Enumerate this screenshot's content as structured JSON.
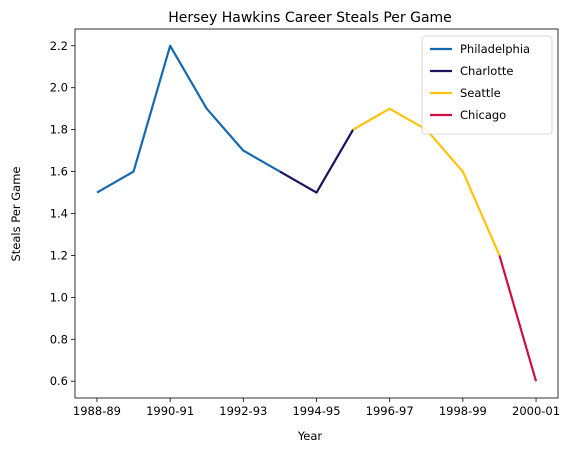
{
  "chart_data": {
    "type": "line",
    "title": "Hersey Hawkins Career Steals Per Game",
    "xlabel": "Year",
    "ylabel": "Steals Per Game",
    "xlim": [
      1988,
      2000
    ],
    "ylim": [
      0.52,
      2.28
    ],
    "x_ticks": [
      {
        "value": 1988,
        "label": "1988-89"
      },
      {
        "value": 1990,
        "label": "1990-91"
      },
      {
        "value": 1992,
        "label": "1992-93"
      },
      {
        "value": 1994,
        "label": "1994-95"
      },
      {
        "value": 1996,
        "label": "1996-97"
      },
      {
        "value": 1998,
        "label": "1998-99"
      },
      {
        "value": 2000,
        "label": "2000-01"
      }
    ],
    "y_ticks": [
      0.6,
      0.8,
      1.0,
      1.2,
      1.4,
      1.6,
      1.8,
      2.0,
      2.2
    ],
    "grid": false,
    "legend_position": "top-right",
    "series": [
      {
        "name": "Philadelphia",
        "color": "#1469b0",
        "points": [
          [
            1988,
            1.5
          ],
          [
            1989,
            1.6
          ],
          [
            1990,
            2.2
          ],
          [
            1991,
            1.9
          ],
          [
            1992,
            1.7
          ],
          [
            1993,
            1.6
          ]
        ]
      },
      {
        "name": "Charlotte",
        "color": "#1d1160",
        "points": [
          [
            1993,
            1.6
          ],
          [
            1994,
            1.5
          ],
          [
            1995,
            1.8
          ]
        ]
      },
      {
        "name": "Seattle",
        "color": "#ffc20e",
        "points": [
          [
            1995,
            1.8
          ],
          [
            1996,
            1.9
          ],
          [
            1997,
            1.8
          ],
          [
            1998,
            1.6
          ],
          [
            1999,
            1.2
          ]
        ]
      },
      {
        "name": "Chicago",
        "color": "#ce1141",
        "points": [
          [
            1999,
            1.2
          ],
          [
            2000,
            0.6
          ]
        ]
      }
    ]
  }
}
